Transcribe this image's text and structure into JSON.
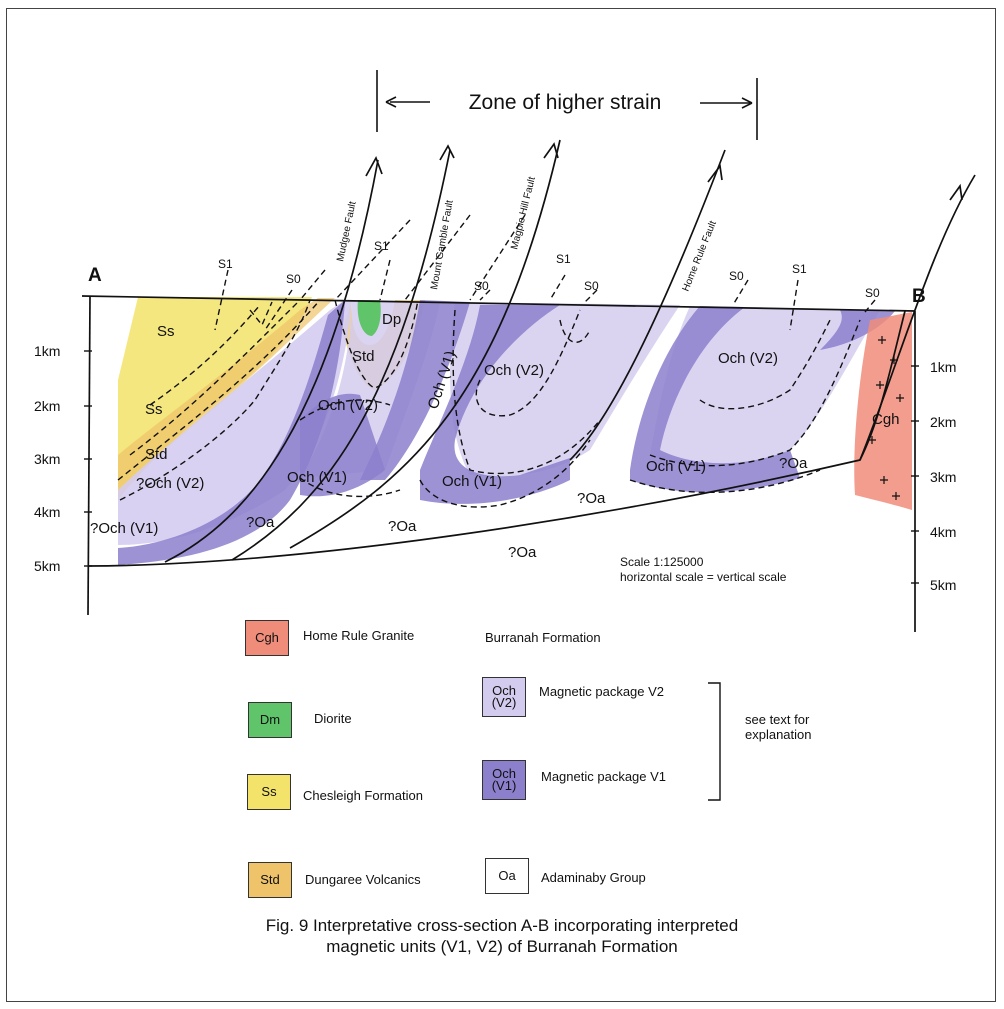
{
  "header": {
    "zone_label": "Zone of higher strain"
  },
  "section": {
    "end_a": "A",
    "end_b": "B",
    "depth_left": [
      "1km",
      "2km",
      "3km",
      "4km",
      "5km"
    ],
    "depth_right": [
      "1km",
      "2km",
      "3km",
      "4km",
      "5km"
    ],
    "faults": [
      "Mudgee Fault",
      "Mount Gamble Fault",
      "Magpie Hill Fault",
      "Home Rule Fault"
    ],
    "cleavage_labels": [
      "S1",
      "S0",
      "S1",
      "S0",
      "S1",
      "S0",
      "S0",
      "S1",
      "S0"
    ],
    "unit_labels": {
      "ss1": "Ss",
      "ss2": "Ss",
      "std1": "Std",
      "std2": "Std",
      "dp": "Dp",
      "och_v2_left": "?Och (V2)",
      "och_v1_left": "?Och (V1)",
      "och_v2_a": "Och (V2)",
      "och_v1_a": "Och (V1)",
      "och_v1_steep": "Och (V1)",
      "och_v2_b": "Och (V2)",
      "och_v1_b": "Och (V1)",
      "och_v1_c": "Och (V1)",
      "och_v2_c": "Och (V2)",
      "oa1": "?Oa",
      "oa2": "?Oa",
      "oa3": "?Oa",
      "oa4": "?Oa",
      "oa5": "?Oa",
      "cgh": "Cgh"
    },
    "scale_text": "Scale 1:125000",
    "scale_note": "horizontal scale = vertical scale"
  },
  "legend": {
    "cgh": {
      "code": "Cgh",
      "label": "Home Rule Granite",
      "color": "#f08c7a"
    },
    "dm": {
      "code": "Dm",
      "label": "Diorite",
      "color": "#5fc46a"
    },
    "ss": {
      "code": "Ss",
      "label": "Chesleigh Formation",
      "color": "#f3e36a"
    },
    "std": {
      "code": "Std",
      "label": "Dungaree Volcanics",
      "color": "#eec36a"
    },
    "burranah": "Burranah Formation",
    "v2": {
      "code_1": "Och",
      "code_2": "(V2)",
      "label": "Magnetic package V2",
      "color": "#d4ccef"
    },
    "v1": {
      "code_1": "Och",
      "code_2": "(V1)",
      "label": "Magnetic package V1",
      "color": "#8c7fcc"
    },
    "explain_1": "see text for",
    "explain_2": "explanation",
    "oa": {
      "code": "Oa",
      "label": "Adaminaby Group",
      "color": "#ffffff"
    }
  },
  "caption": {
    "line1": "Fig. 9 Interpretative cross-section A-B incorporating interpreted",
    "line2": "magnetic units (V1, V2) of Burranah Formation"
  }
}
